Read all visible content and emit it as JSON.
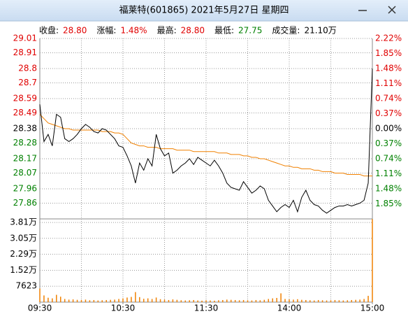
{
  "window_title": "福莱特(601865)  2021年5月27日  星期四",
  "chart_data": {
    "type": "line",
    "info": [
      {
        "label": "收盘:",
        "value": "28.80",
        "color": "#e00000"
      },
      {
        "label": "涨幅:",
        "value": "1.48%",
        "color": "#e00000"
      },
      {
        "label": "最高:",
        "value": "28.80",
        "color": "#e00000"
      },
      {
        "label": "最低:",
        "value": "27.75",
        "color": "#008000"
      },
      {
        "label": "成交量:",
        "value": "21.10万",
        "color": "#000000"
      }
    ],
    "up_color": "#e00000",
    "down_color": "#008000",
    "flat_color": "#000000",
    "grid": true,
    "categories": [
      "09:30",
      null,
      null,
      null,
      null,
      null,
      null,
      null,
      null,
      null,
      null,
      null,
      null,
      null,
      null,
      null,
      null,
      null,
      null,
      null,
      "10:30",
      null,
      null,
      null,
      null,
      null,
      null,
      null,
      null,
      null,
      null,
      null,
      null,
      null,
      null,
      null,
      null,
      null,
      null,
      null,
      "11:30",
      null,
      null,
      null,
      null,
      null,
      null,
      null,
      null,
      null,
      null,
      null,
      null,
      null,
      null,
      null,
      null,
      null,
      null,
      null,
      "14:00",
      null,
      null,
      null,
      null,
      null,
      null,
      null,
      null,
      null,
      null,
      null,
      null,
      null,
      null,
      null,
      null,
      null,
      null,
      null,
      "15:00"
    ],
    "ylim": [
      27.75,
      29.01
    ],
    "yticks": [
      29.01,
      28.91,
      28.8,
      28.7,
      28.59,
      28.49,
      28.38,
      28.28,
      28.17,
      28.07,
      27.96,
      27.86
    ],
    "y2lim": [
      -2.22,
      2.22
    ],
    "y2ticks": [
      {
        "value": 2.22,
        "label": "2.22%"
      },
      {
        "value": 1.85,
        "label": "1.85%"
      },
      {
        "value": 1.48,
        "label": "1.48%"
      },
      {
        "value": 1.11,
        "label": "1.11%"
      },
      {
        "value": 0.74,
        "label": "0.74%"
      },
      {
        "value": 0.37,
        "label": "0.37%"
      },
      {
        "value": 0,
        "label": "0.00%"
      },
      {
        "value": -0.37,
        "label": "0.37%"
      },
      {
        "value": -0.74,
        "label": "0.74%"
      },
      {
        "value": -1.11,
        "label": "1.11%"
      },
      {
        "value": -1.48,
        "label": "1.48%"
      },
      {
        "value": -1.85,
        "label": "1.85%"
      }
    ],
    "series": [
      {
        "color": "#000000",
        "values": [
          28.55,
          28.29,
          28.34,
          28.26,
          28.48,
          28.46,
          28.31,
          28.29,
          28.31,
          28.34,
          28.38,
          28.41,
          28.39,
          28.36,
          28.35,
          28.38,
          28.37,
          28.34,
          28.31,
          28.26,
          28.25,
          28.19,
          28.12,
          28.0,
          28.14,
          28.09,
          28.17,
          28.12,
          28.34,
          28.24,
          28.19,
          28.21,
          28.07,
          28.09,
          28.12,
          28.14,
          28.17,
          28.13,
          28.18,
          28.16,
          28.14,
          28.12,
          28.16,
          28.12,
          28.07,
          28.0,
          27.97,
          27.96,
          27.95,
          28.01,
          27.97,
          27.93,
          27.95,
          27.98,
          27.96,
          27.88,
          27.84,
          27.8,
          27.83,
          27.85,
          27.83,
          27.88,
          27.8,
          27.9,
          27.95,
          27.88,
          27.85,
          27.84,
          27.81,
          27.79,
          27.81,
          27.83,
          27.84,
          27.84,
          27.85,
          27.84,
          27.85,
          27.86,
          27.88,
          28.0,
          28.8
        ]
      },
      {
        "color": "#f08000",
        "values": [
          28.48,
          28.45,
          28.42,
          28.41,
          28.4,
          28.39,
          28.38,
          28.38,
          28.37,
          28.37,
          28.37,
          28.37,
          28.37,
          28.37,
          28.37,
          28.36,
          28.36,
          28.36,
          28.35,
          28.35,
          28.34,
          28.31,
          28.28,
          28.27,
          28.26,
          28.26,
          28.25,
          28.25,
          28.25,
          28.24,
          28.24,
          28.24,
          28.24,
          28.23,
          28.23,
          28.23,
          28.23,
          28.22,
          28.22,
          28.22,
          28.22,
          28.22,
          28.22,
          28.21,
          28.21,
          28.21,
          28.2,
          28.2,
          28.2,
          28.19,
          28.19,
          28.18,
          28.18,
          28.17,
          28.17,
          28.16,
          28.15,
          28.14,
          28.13,
          28.12,
          28.12,
          28.11,
          28.11,
          28.1,
          28.1,
          28.1,
          28.09,
          28.09,
          28.08,
          28.08,
          28.08,
          28.07,
          28.07,
          28.07,
          28.06,
          28.06,
          28.06,
          28.06,
          28.05,
          28.05,
          28.05
        ]
      }
    ],
    "volume": {
      "color": "#f08000",
      "ylim": [
        0,
        39800
      ],
      "yticks": [
        {
          "value": 38100,
          "label": "3.81万"
        },
        {
          "value": 30500,
          "label": "3.05万"
        },
        {
          "value": 22900,
          "label": "2.29万"
        },
        {
          "value": 15200,
          "label": "1.52万"
        },
        7623
      ],
      "values": [
        6500,
        3200,
        2100,
        1800,
        3500,
        2600,
        1500,
        1200,
        1300,
        1100,
        1000,
        1200,
        900,
        1000,
        800,
        900,
        1000,
        1100,
        1200,
        1500,
        1800,
        2200,
        2500,
        4800,
        2400,
        1600,
        1800,
        1500,
        2200,
        1400,
        1200,
        1000,
        1300,
        1100,
        900,
        800,
        900,
        1000,
        800,
        700,
        900,
        800,
        700,
        900,
        1000,
        1200,
        1100,
        1000,
        900,
        1000,
        900,
        800,
        1000,
        900,
        1100,
        1500,
        1800,
        2000,
        4200,
        1500,
        1300,
        1200,
        1400,
        1100,
        1000,
        900,
        800,
        1000,
        900,
        800,
        900,
        1000,
        900,
        800,
        900,
        1000,
        1100,
        1200,
        1500,
        3000,
        39700
      ]
    }
  }
}
